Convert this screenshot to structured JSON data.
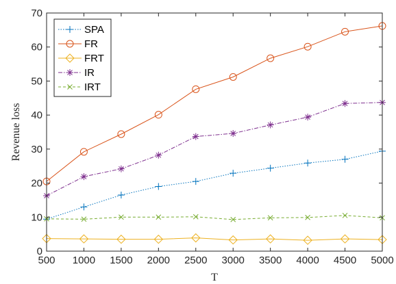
{
  "chart_data": {
    "type": "line",
    "title": "",
    "xlabel": "T",
    "ylabel": "Revenue loss",
    "x": [
      500,
      1000,
      1500,
      2000,
      2500,
      3000,
      3500,
      4000,
      4500,
      5000
    ],
    "xlim": [
      500,
      5000
    ],
    "ylim": [
      0,
      70
    ],
    "xticks": [
      "500",
      "1000",
      "1500",
      "2000",
      "2500",
      "3000",
      "3500",
      "4000",
      "4500",
      "5000"
    ],
    "yticks": [
      "0",
      "10",
      "20",
      "30",
      "40",
      "50",
      "60",
      "70"
    ],
    "grid": false,
    "legend_position": "top-left",
    "series": [
      {
        "name": "SPA",
        "color": "#0072BD",
        "marker": "plus",
        "line": "dotted",
        "values": [
          9.4,
          13.0,
          16.5,
          19.0,
          20.5,
          22.9,
          24.4,
          25.9,
          27.0,
          29.4
        ]
      },
      {
        "name": "FR",
        "color": "#D95319",
        "marker": "circle",
        "line": "solid",
        "values": [
          20.5,
          29.2,
          34.4,
          40.1,
          47.6,
          51.2,
          56.7,
          60.1,
          64.5,
          66.2
        ]
      },
      {
        "name": "FRT",
        "color": "#EDB120",
        "marker": "diamond",
        "line": "solid",
        "values": [
          3.7,
          3.6,
          3.5,
          3.5,
          3.9,
          3.3,
          3.6,
          3.2,
          3.6,
          3.4
        ]
      },
      {
        "name": "IR",
        "color": "#7E2F8E",
        "marker": "asterisk",
        "line": "dashdot",
        "values": [
          16.3,
          21.9,
          24.2,
          28.2,
          33.7,
          34.6,
          37.1,
          39.4,
          43.4,
          43.7
        ]
      },
      {
        "name": "IRT",
        "color": "#77AC30",
        "marker": "x",
        "line": "dashed",
        "values": [
          9.5,
          9.4,
          10.0,
          10.0,
          10.1,
          9.3,
          9.8,
          9.9,
          10.5,
          9.8
        ]
      }
    ]
  }
}
